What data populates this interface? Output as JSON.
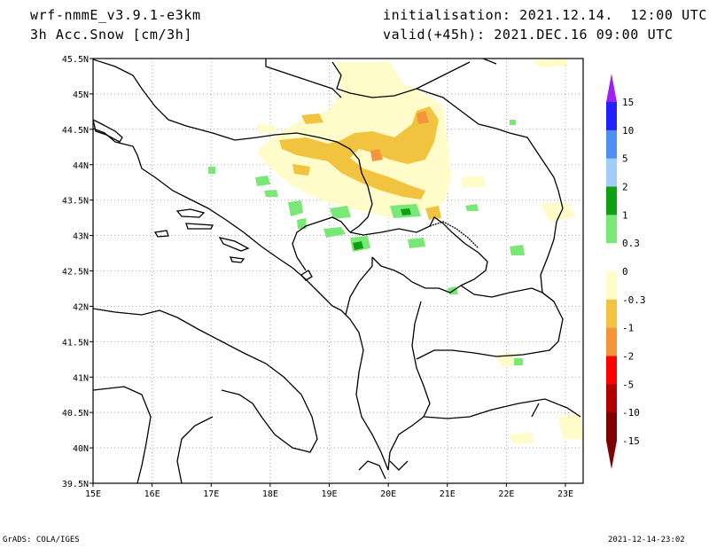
{
  "header": {
    "model": "wrf-nmmE_v3.9.1-e3km",
    "field": "3h Acc.Snow [cm/3h]",
    "init_label": "initialisation:",
    "init_value": "2021.12.14.  12:00 UTC",
    "valid_label": "valid(+45h):",
    "valid_value": "2021.DEC.16 09:00 UTC"
  },
  "map": {
    "lat_labels": [
      "45.5N",
      "45N",
      "44.5N",
      "44N",
      "43.5N",
      "43N",
      "42.5N",
      "42N",
      "41.5N",
      "41N",
      "40.5N",
      "40N",
      "39.5N"
    ],
    "lon_labels": [
      "15E",
      "16E",
      "17E",
      "18E",
      "19E",
      "20E",
      "21E",
      "22E",
      "23E"
    ],
    "lat_range": [
      39.5,
      45.5
    ],
    "lon_range": [
      15,
      23.3
    ],
    "grid": true
  },
  "colorbar": {
    "labels": [
      "15",
      "10",
      "5",
      "2",
      "1",
      "0.3",
      "0",
      "-0.3",
      "-1",
      "-2",
      "-5",
      "-10",
      "-15"
    ],
    "colors": [
      "#2121ff",
      "#4f8ef2",
      "#a1cdf8",
      "#0e9f13",
      "#7ae876",
      "#ffffff",
      "#fffcc9",
      "#f2c33f",
      "#f4953c",
      "#ff0000",
      "#b20000",
      "#7f0000"
    ],
    "top_arrow_color": "#a020f0",
    "bottom_arrow_color": "#7f0000"
  },
  "footer": {
    "left": "GrADS: COLA/IGES",
    "right": "2021-12-14-23:02"
  }
}
